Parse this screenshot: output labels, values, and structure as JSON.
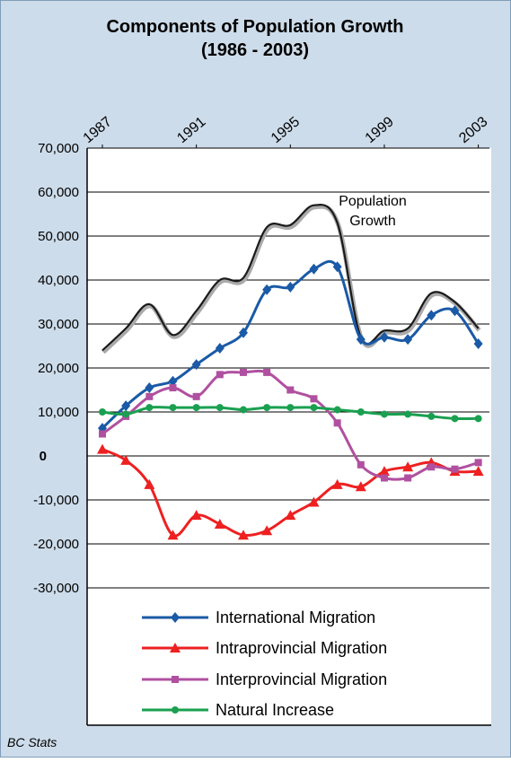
{
  "chart_data": {
    "type": "line",
    "title": "Components of Population Growth",
    "subtitle": "(1986 - 2003)",
    "source": "BC Stats",
    "x": [
      1987,
      1988,
      1989,
      1990,
      1991,
      1992,
      1993,
      1994,
      1995,
      1996,
      1997,
      1998,
      1999,
      2000,
      2001,
      2002,
      2003
    ],
    "xlim": [
      1986.35,
      2003.55
    ],
    "xticks": [
      1987,
      1991,
      1995,
      1999,
      2003
    ],
    "ylim": [
      -30000,
      70000
    ],
    "yticks": [
      {
        "value": 70000,
        "label": "70,000"
      },
      {
        "value": 60000,
        "label": "60,000"
      },
      {
        "value": 50000,
        "label": "50,000"
      },
      {
        "value": 40000,
        "label": "40,000"
      },
      {
        "value": 30000,
        "label": "30,000"
      },
      {
        "value": 20000,
        "label": "20,000"
      },
      {
        "value": 10000,
        "label": "10,000"
      },
      0,
      {
        "value": -10000,
        "label": "-10,000"
      },
      {
        "value": -20000,
        "label": "-20,000"
      },
      {
        "value": -30000,
        "label": "-30,000"
      }
    ],
    "grid": true,
    "series": [
      {
        "name": "Population Growth",
        "color": "#1a1a1a",
        "values": [
          24000,
          29000,
          34500,
          27500,
          33000,
          40000,
          40500,
          52000,
          52500,
          57000,
          53000,
          27000,
          28500,
          29000,
          37000,
          35000,
          29000
        ]
      },
      {
        "name": "International Migration",
        "color": "#1a5aa6",
        "marker": "diamond",
        "values": [
          6300,
          11400,
          15500,
          17000,
          20800,
          24500,
          28000,
          37800,
          38400,
          42500,
          43000,
          26500,
          27000,
          26500,
          32000,
          33000,
          25500
        ]
      },
      {
        "name": "Intraprovincial Migration",
        "color": "#ee2020",
        "marker": "triangle",
        "values": [
          1500,
          -1000,
          -6500,
          -18000,
          -13500,
          -15500,
          -18000,
          -17000,
          -13500,
          -10500,
          -6500,
          -7000,
          -3500,
          -2500,
          -1500,
          -3500,
          -3500
        ]
      },
      {
        "name": "Interprovincial Migration",
        "color": "#b050a0",
        "marker": "square",
        "values": [
          5000,
          9000,
          13500,
          15500,
          13500,
          18500,
          19000,
          19000,
          15000,
          13000,
          7500,
          -2000,
          -5000,
          -5000,
          -2500,
          -3000,
          -1500
        ]
      },
      {
        "name": "Natural Increase",
        "color": "#1aa050",
        "marker": "circle",
        "values": [
          10000,
          9500,
          11000,
          11000,
          11000,
          11000,
          10500,
          11000,
          11000,
          11000,
          10500,
          10000,
          9500,
          9500,
          9000,
          8500,
          8500
        ]
      }
    ]
  }
}
